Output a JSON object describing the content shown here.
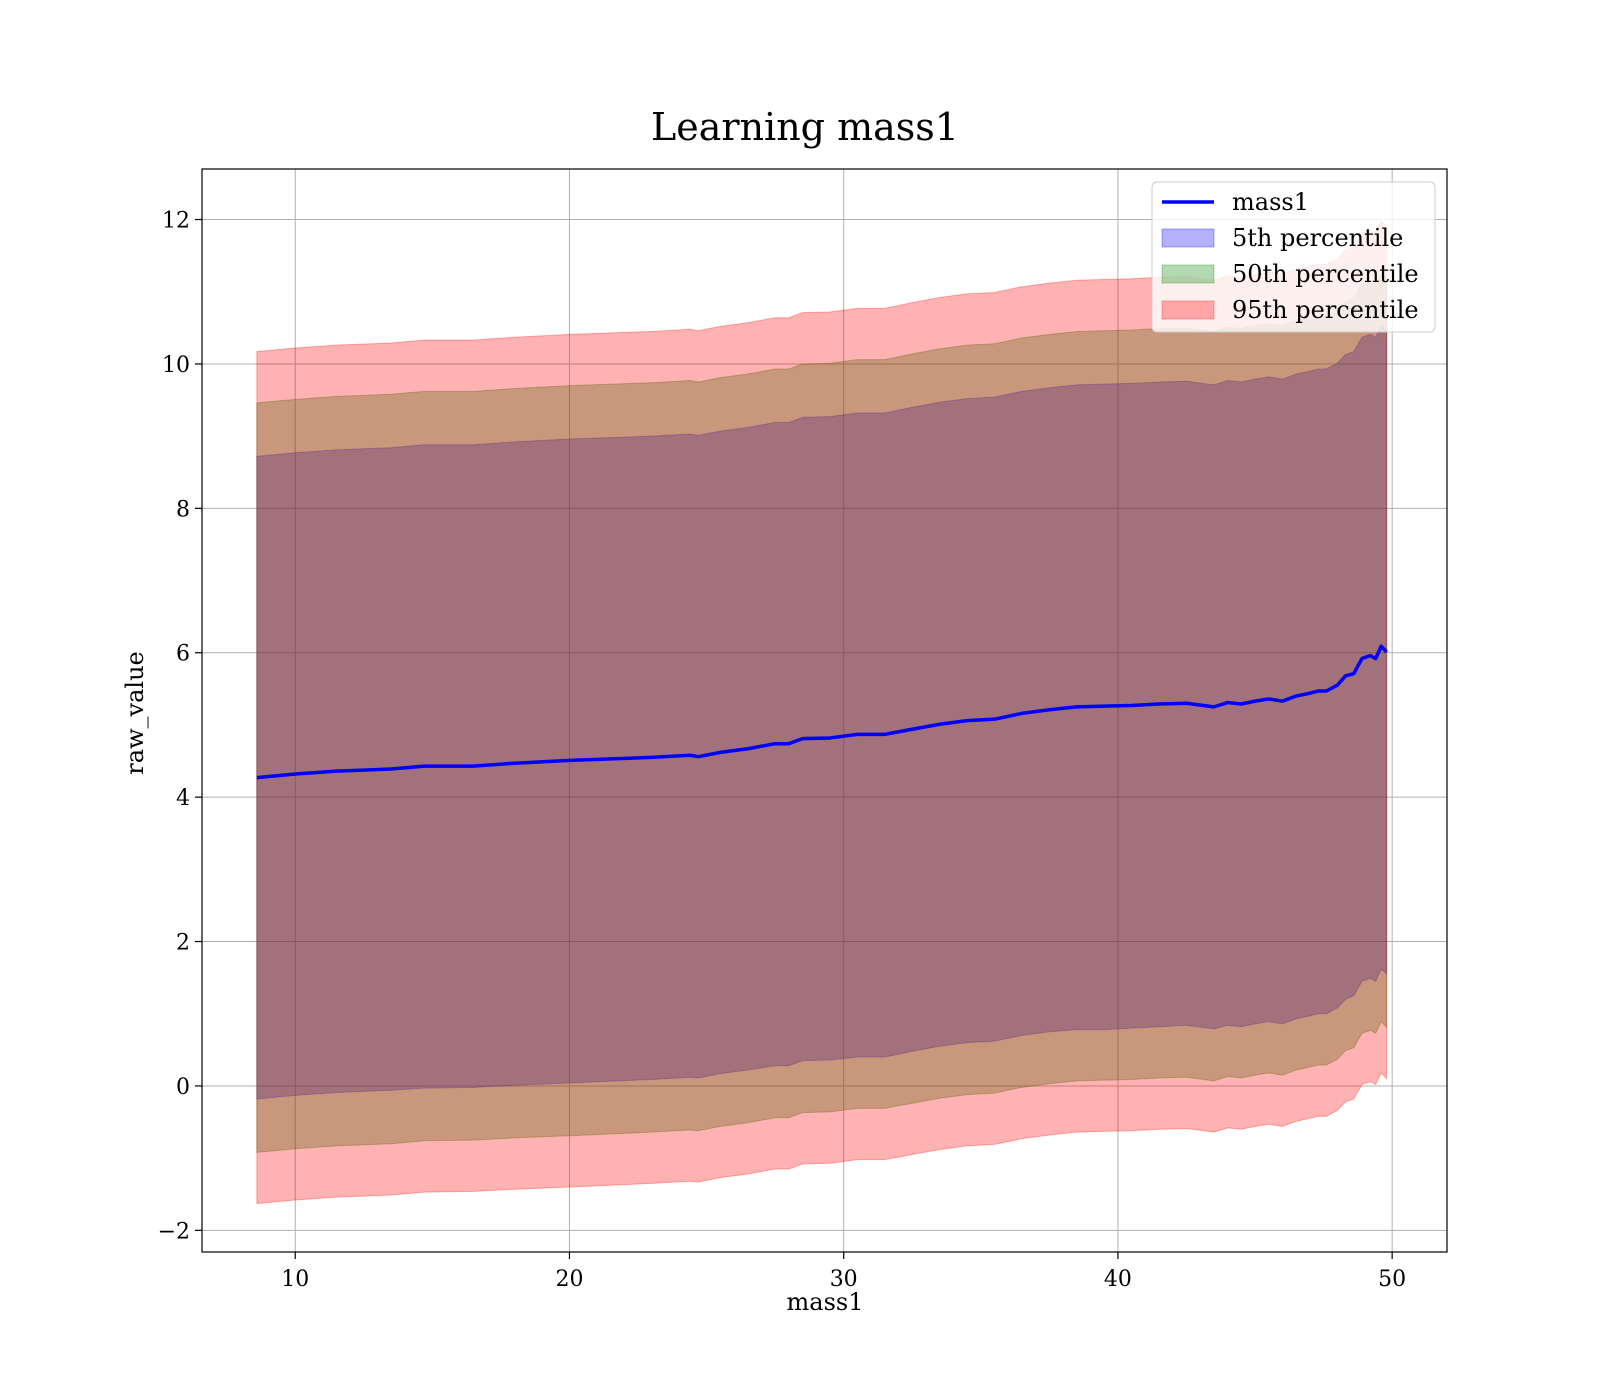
{
  "chart_data": {
    "type": "area",
    "title": "Learning mass1",
    "xlabel": "mass1",
    "ylabel": "raw_value",
    "xlim": [
      6.6,
      52.0
    ],
    "ylim": [
      -2.3,
      12.7
    ],
    "xticks": [
      10,
      20,
      30,
      40,
      50
    ],
    "yticks": [
      -2,
      0,
      2,
      4,
      6,
      8,
      10,
      12
    ],
    "xtick_labels": [
      "10",
      "20",
      "30",
      "40",
      "50"
    ],
    "ytick_labels": [
      "−2",
      "0",
      "2",
      "4",
      "6",
      "8",
      "10",
      "12"
    ],
    "grid": true,
    "legend_position": "upper right",
    "x": [
      8.6,
      10,
      11.5,
      13.5,
      14.7,
      16.5,
      18,
      20,
      23,
      24.4,
      24.7,
      25.5,
      26.5,
      27.5,
      28,
      28.5,
      29.5,
      30.5,
      31.5,
      32.5,
      33.5,
      34.5,
      35.5,
      36.5,
      37.5,
      38.5,
      39.5,
      40.5,
      41.5,
      42.5,
      43.5,
      44,
      44.5,
      45,
      45.5,
      46,
      46.5,
      47,
      47.3,
      47.6,
      48,
      48.3,
      48.6,
      48.9,
      49.2,
      49.4,
      49.6,
      49.8
    ],
    "series": [
      {
        "name": "mass1",
        "kind": "line",
        "color": "#0000ff",
        "values": [
          4.27,
          4.32,
          4.36,
          4.39,
          4.43,
          4.43,
          4.47,
          4.51,
          4.55,
          4.58,
          4.56,
          4.62,
          4.67,
          4.74,
          4.74,
          4.81,
          4.82,
          4.87,
          4.87,
          4.94,
          5.01,
          5.06,
          5.08,
          5.16,
          5.21,
          5.25,
          5.26,
          5.27,
          5.29,
          5.3,
          5.25,
          5.31,
          5.29,
          5.33,
          5.36,
          5.33,
          5.4,
          5.44,
          5.47,
          5.47,
          5.55,
          5.68,
          5.71,
          5.92,
          5.96,
          5.92,
          6.09,
          6.01
        ]
      },
      {
        "name": "5th percentile",
        "kind": "band",
        "color": "#0000ff",
        "lower": [
          -0.18,
          -0.13,
          -0.09,
          -0.06,
          -0.03,
          -0.02,
          0.01,
          0.04,
          0.09,
          0.12,
          0.11,
          0.17,
          0.22,
          0.28,
          0.28,
          0.35,
          0.36,
          0.4,
          0.4,
          0.48,
          0.55,
          0.6,
          0.62,
          0.7,
          0.75,
          0.78,
          0.78,
          0.8,
          0.82,
          0.84,
          0.79,
          0.84,
          0.82,
          0.86,
          0.89,
          0.86,
          0.93,
          0.97,
          1.0,
          1.0,
          1.08,
          1.2,
          1.25,
          1.45,
          1.49,
          1.45,
          1.62,
          1.55
        ],
        "upper": [
          8.72,
          8.77,
          8.81,
          8.84,
          8.88,
          8.88,
          8.92,
          8.96,
          9.0,
          9.03,
          9.01,
          9.07,
          9.12,
          9.19,
          9.19,
          9.26,
          9.27,
          9.32,
          9.32,
          9.4,
          9.47,
          9.52,
          9.54,
          9.62,
          9.67,
          9.71,
          9.72,
          9.73,
          9.75,
          9.76,
          9.71,
          9.77,
          9.75,
          9.79,
          9.82,
          9.79,
          9.86,
          9.9,
          9.93,
          9.93,
          10.01,
          10.13,
          10.17,
          10.37,
          10.41,
          10.37,
          10.53,
          10.45
        ]
      },
      {
        "name": "50th percentile",
        "kind": "band",
        "color": "#008000",
        "lower": [
          -0.92,
          -0.87,
          -0.83,
          -0.8,
          -0.76,
          -0.75,
          -0.72,
          -0.69,
          -0.64,
          -0.61,
          -0.62,
          -0.56,
          -0.51,
          -0.44,
          -0.44,
          -0.37,
          -0.36,
          -0.31,
          -0.31,
          -0.24,
          -0.17,
          -0.12,
          -0.1,
          -0.02,
          0.03,
          0.07,
          0.08,
          0.09,
          0.11,
          0.12,
          0.07,
          0.13,
          0.11,
          0.15,
          0.18,
          0.15,
          0.22,
          0.26,
          0.29,
          0.29,
          0.37,
          0.49,
          0.53,
          0.73,
          0.77,
          0.73,
          0.89,
          0.81
        ],
        "upper": [
          9.46,
          9.51,
          9.55,
          9.58,
          9.62,
          9.62,
          9.66,
          9.7,
          9.74,
          9.77,
          9.75,
          9.81,
          9.86,
          9.93,
          9.93,
          10.0,
          10.01,
          10.06,
          10.06,
          10.14,
          10.21,
          10.26,
          10.28,
          10.36,
          10.41,
          10.45,
          10.46,
          10.47,
          10.49,
          10.5,
          10.45,
          10.51,
          10.49,
          10.53,
          10.56,
          10.53,
          10.6,
          10.64,
          10.67,
          10.67,
          10.75,
          10.87,
          10.91,
          11.11,
          11.15,
          11.11,
          11.27,
          11.19
        ]
      },
      {
        "name": "95th percentile",
        "kind": "band",
        "color": "#ff0000",
        "lower": [
          -1.63,
          -1.58,
          -1.54,
          -1.51,
          -1.47,
          -1.46,
          -1.43,
          -1.4,
          -1.35,
          -1.32,
          -1.33,
          -1.27,
          -1.22,
          -1.15,
          -1.15,
          -1.08,
          -1.07,
          -1.02,
          -1.02,
          -0.95,
          -0.88,
          -0.83,
          -0.81,
          -0.73,
          -0.68,
          -0.64,
          -0.63,
          -0.62,
          -0.6,
          -0.59,
          -0.64,
          -0.58,
          -0.6,
          -0.56,
          -0.53,
          -0.56,
          -0.49,
          -0.45,
          -0.42,
          -0.42,
          -0.34,
          -0.22,
          -0.18,
          0.02,
          0.06,
          0.02,
          0.18,
          0.1
        ],
        "upper": [
          10.17,
          10.22,
          10.26,
          10.29,
          10.33,
          10.33,
          10.37,
          10.41,
          10.45,
          10.48,
          10.46,
          10.52,
          10.57,
          10.64,
          10.64,
          10.71,
          10.72,
          10.77,
          10.77,
          10.85,
          10.92,
          10.97,
          10.99,
          11.07,
          11.12,
          11.16,
          11.17,
          11.18,
          11.2,
          11.21,
          11.16,
          11.22,
          11.2,
          11.24,
          11.27,
          11.24,
          11.31,
          11.35,
          11.38,
          11.38,
          11.46,
          11.58,
          11.62,
          11.82,
          11.86,
          11.82,
          11.98,
          11.9
        ]
      }
    ],
    "legend": [
      {
        "label": "mass1",
        "kind": "line",
        "color": "#0000ff"
      },
      {
        "label": "5th percentile",
        "kind": "band",
        "color": "#0000ff"
      },
      {
        "label": "50th percentile",
        "kind": "band",
        "color": "#008000"
      },
      {
        "label": "95th percentile",
        "kind": "band",
        "color": "#ff0000"
      }
    ]
  }
}
